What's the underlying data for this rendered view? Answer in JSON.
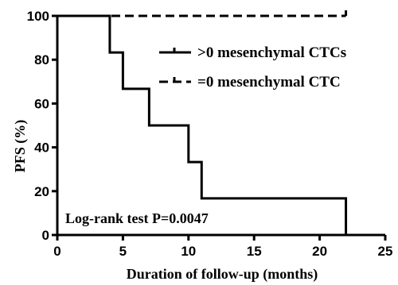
{
  "chart_data": {
    "type": "line",
    "xlabel": "Duration of follow-up (months)",
    "ylabel": "PFS (%)",
    "xlim": [
      0,
      25
    ],
    "ylim": [
      0,
      100
    ],
    "xticks": [
      0,
      5,
      10,
      15,
      20,
      25
    ],
    "yticks": [
      0,
      20,
      40,
      60,
      80,
      100
    ],
    "grid": false,
    "legend_position": "top-right",
    "series": [
      {
        "name": ">0 mesenchymal CTCs",
        "style": "solid step",
        "color": "#000000",
        "steps": [
          [
            0,
            100
          ],
          [
            4,
            83.3
          ],
          [
            5,
            66.7
          ],
          [
            7,
            50
          ],
          [
            10,
            33.3
          ],
          [
            11,
            16.7
          ],
          [
            22,
            0
          ]
        ],
        "end_x": 22
      },
      {
        "name": "=0 mesenchymal CTC",
        "style": "dashed step",
        "color": "#000000",
        "steps": [
          [
            0,
            100
          ]
        ],
        "end_x": 22
      }
    ],
    "annotation": "Log-rank test P=0.0047"
  }
}
